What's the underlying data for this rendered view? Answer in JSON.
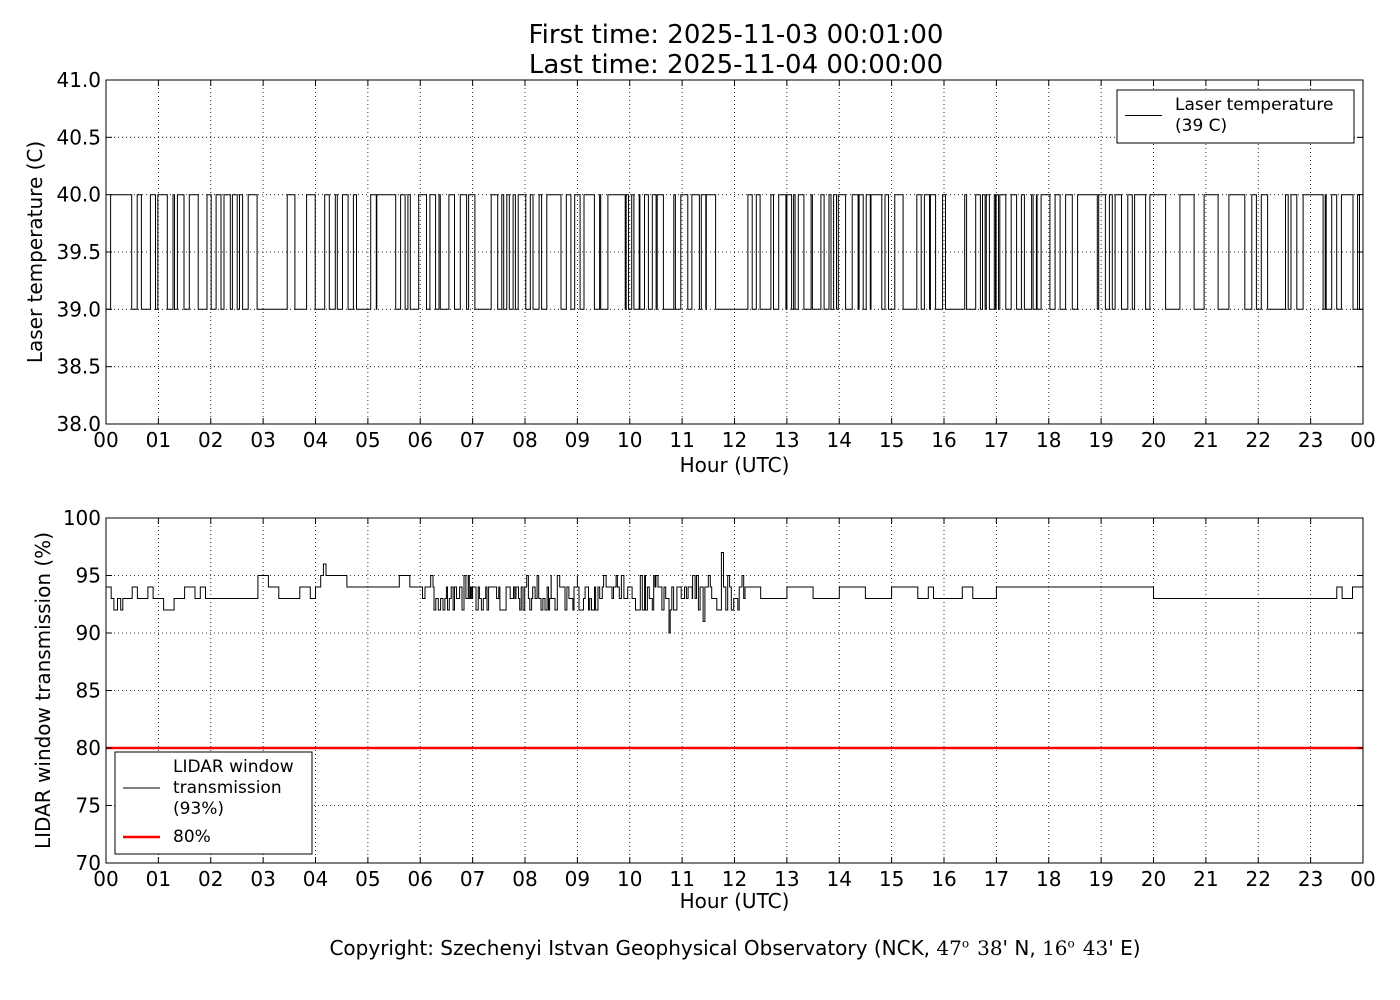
{
  "header": {
    "first_time": "First time: 2025-11-03 00:01:00",
    "last_time": "Last time: 2025-11-04 00:00:00"
  },
  "footer": {
    "prefix": "Copyright: Szechenyi Istvan Geophysical Observatory (NCK, ",
    "lat_deg": "47",
    "lat_min": "38",
    "lat_suffix": "' N, ",
    "lon_deg": "16",
    "lon_min": "43",
    "lon_suffix": "' E)",
    "degree_sup": "o"
  },
  "chart_data": [
    {
      "type": "line",
      "xlabel": "Hour (UTC)",
      "ylabel": "Laser temperature (C)",
      "ylim": [
        38.0,
        41.0
      ],
      "xlim": [
        0,
        24
      ],
      "yticks": [
        "38.0",
        "38.5",
        "39.0",
        "39.5",
        "40.0",
        "40.5",
        "41.0"
      ],
      "xticks": [
        "00",
        "01",
        "02",
        "03",
        "04",
        "05",
        "06",
        "07",
        "08",
        "09",
        "10",
        "11",
        "12",
        "13",
        "14",
        "15",
        "16",
        "17",
        "18",
        "19",
        "20",
        "21",
        "22",
        "23",
        "00"
      ],
      "grid": true,
      "legend_position": "top-right",
      "series": [
        {
          "name": "Laser temperature\n(39 C)",
          "color": "#000000",
          "kind": "binary_toggle",
          "low": 39.0,
          "high": 40.0,
          "gaps_at_low_hours": [
            [
              2.88,
              3.35
            ],
            [
              6.95,
              7.3
            ],
            [
              11.6,
              11.85
            ],
            [
              20.2,
              20.45
            ],
            [
              21.9,
              22.05
            ]
          ],
          "density_profile": [
            {
              "from": 0.0,
              "to": 2.88,
              "rate": 0.55
            },
            {
              "from": 3.35,
              "to": 6.95,
              "rate": 0.6
            },
            {
              "from": 7.3,
              "to": 11.6,
              "rate": 0.7
            },
            {
              "from": 11.85,
              "to": 20.2,
              "rate": 0.65
            },
            {
              "from": 20.45,
              "to": 21.9,
              "rate": 0.5
            },
            {
              "from": 22.05,
              "to": 24.0,
              "rate": 0.55
            }
          ]
        }
      ]
    },
    {
      "type": "line",
      "xlabel": "Hour (UTC)",
      "ylabel": "LIDAR window transmission (%)",
      "ylim": [
        70,
        100
      ],
      "xlim": [
        0,
        24
      ],
      "yticks": [
        "70",
        "75",
        "80",
        "85",
        "90",
        "95",
        "100"
      ],
      "xticks": [
        "00",
        "01",
        "02",
        "03",
        "04",
        "05",
        "06",
        "07",
        "08",
        "09",
        "10",
        "11",
        "12",
        "13",
        "14",
        "15",
        "16",
        "17",
        "18",
        "19",
        "20",
        "21",
        "22",
        "23",
        "00"
      ],
      "grid": true,
      "legend_position": "bottom-left",
      "series": [
        {
          "name": "LIDAR window\ntransmission\n(93%)",
          "color": "#000000",
          "x": [
            0.0,
            0.1,
            0.15,
            0.22,
            0.28,
            0.32,
            0.4,
            0.5,
            0.6,
            0.8,
            0.9,
            1.0,
            1.1,
            1.2,
            1.3,
            1.4,
            1.5,
            1.6,
            1.7,
            1.8,
            1.9,
            2.0,
            2.5,
            2.8,
            2.9,
            3.0,
            3.1,
            3.3,
            3.5,
            3.7,
            3.9,
            4.0,
            4.1,
            4.15,
            4.2,
            4.3,
            4.5,
            4.6,
            4.7,
            5.0,
            5.5,
            5.6,
            5.8,
            6.0,
            6.2,
            6.5,
            7.0,
            7.5,
            8.0,
            8.5,
            9.0,
            9.3,
            9.5,
            9.8,
            10.0,
            10.3,
            10.5,
            10.7,
            10.75,
            10.9,
            11.0,
            11.2,
            11.4,
            11.5,
            11.7,
            11.75,
            11.8,
            12.0,
            12.2,
            12.5,
            13.0,
            13.5,
            14.0,
            14.5,
            15.0,
            15.5,
            15.7,
            15.8,
            16.0,
            16.3,
            16.35,
            16.55,
            16.6,
            17.0,
            20.0,
            23.1,
            23.15,
            23.5,
            23.6,
            23.8,
            24.0
          ],
          "y": [
            94,
            93,
            92,
            93,
            92,
            93,
            93,
            94,
            93,
            94,
            93,
            93,
            92,
            92,
            93,
            93,
            94,
            94,
            93,
            94,
            93,
            93,
            93,
            93,
            95,
            95,
            94,
            93,
            93,
            94,
            93,
            94,
            95,
            96,
            95,
            95,
            95,
            94,
            94,
            94,
            94,
            95,
            94,
            94,
            95,
            94,
            94,
            94,
            94,
            93,
            94,
            92,
            95,
            93,
            94,
            92,
            95,
            93,
            90,
            94,
            93,
            95,
            91,
            95,
            92,
            97,
            94,
            93,
            94,
            93,
            94,
            93,
            94,
            93,
            94,
            93,
            94,
            93,
            93,
            93,
            94,
            93,
            93,
            94,
            93,
            93,
            93,
            94,
            93,
            94,
            93
          ],
          "noise_region": [
            [
              5.9,
              12.2
            ]
          ]
        },
        {
          "name": "80%",
          "color": "#ff0000",
          "x": [
            0,
            24
          ],
          "y": [
            80,
            80
          ]
        }
      ]
    }
  ]
}
